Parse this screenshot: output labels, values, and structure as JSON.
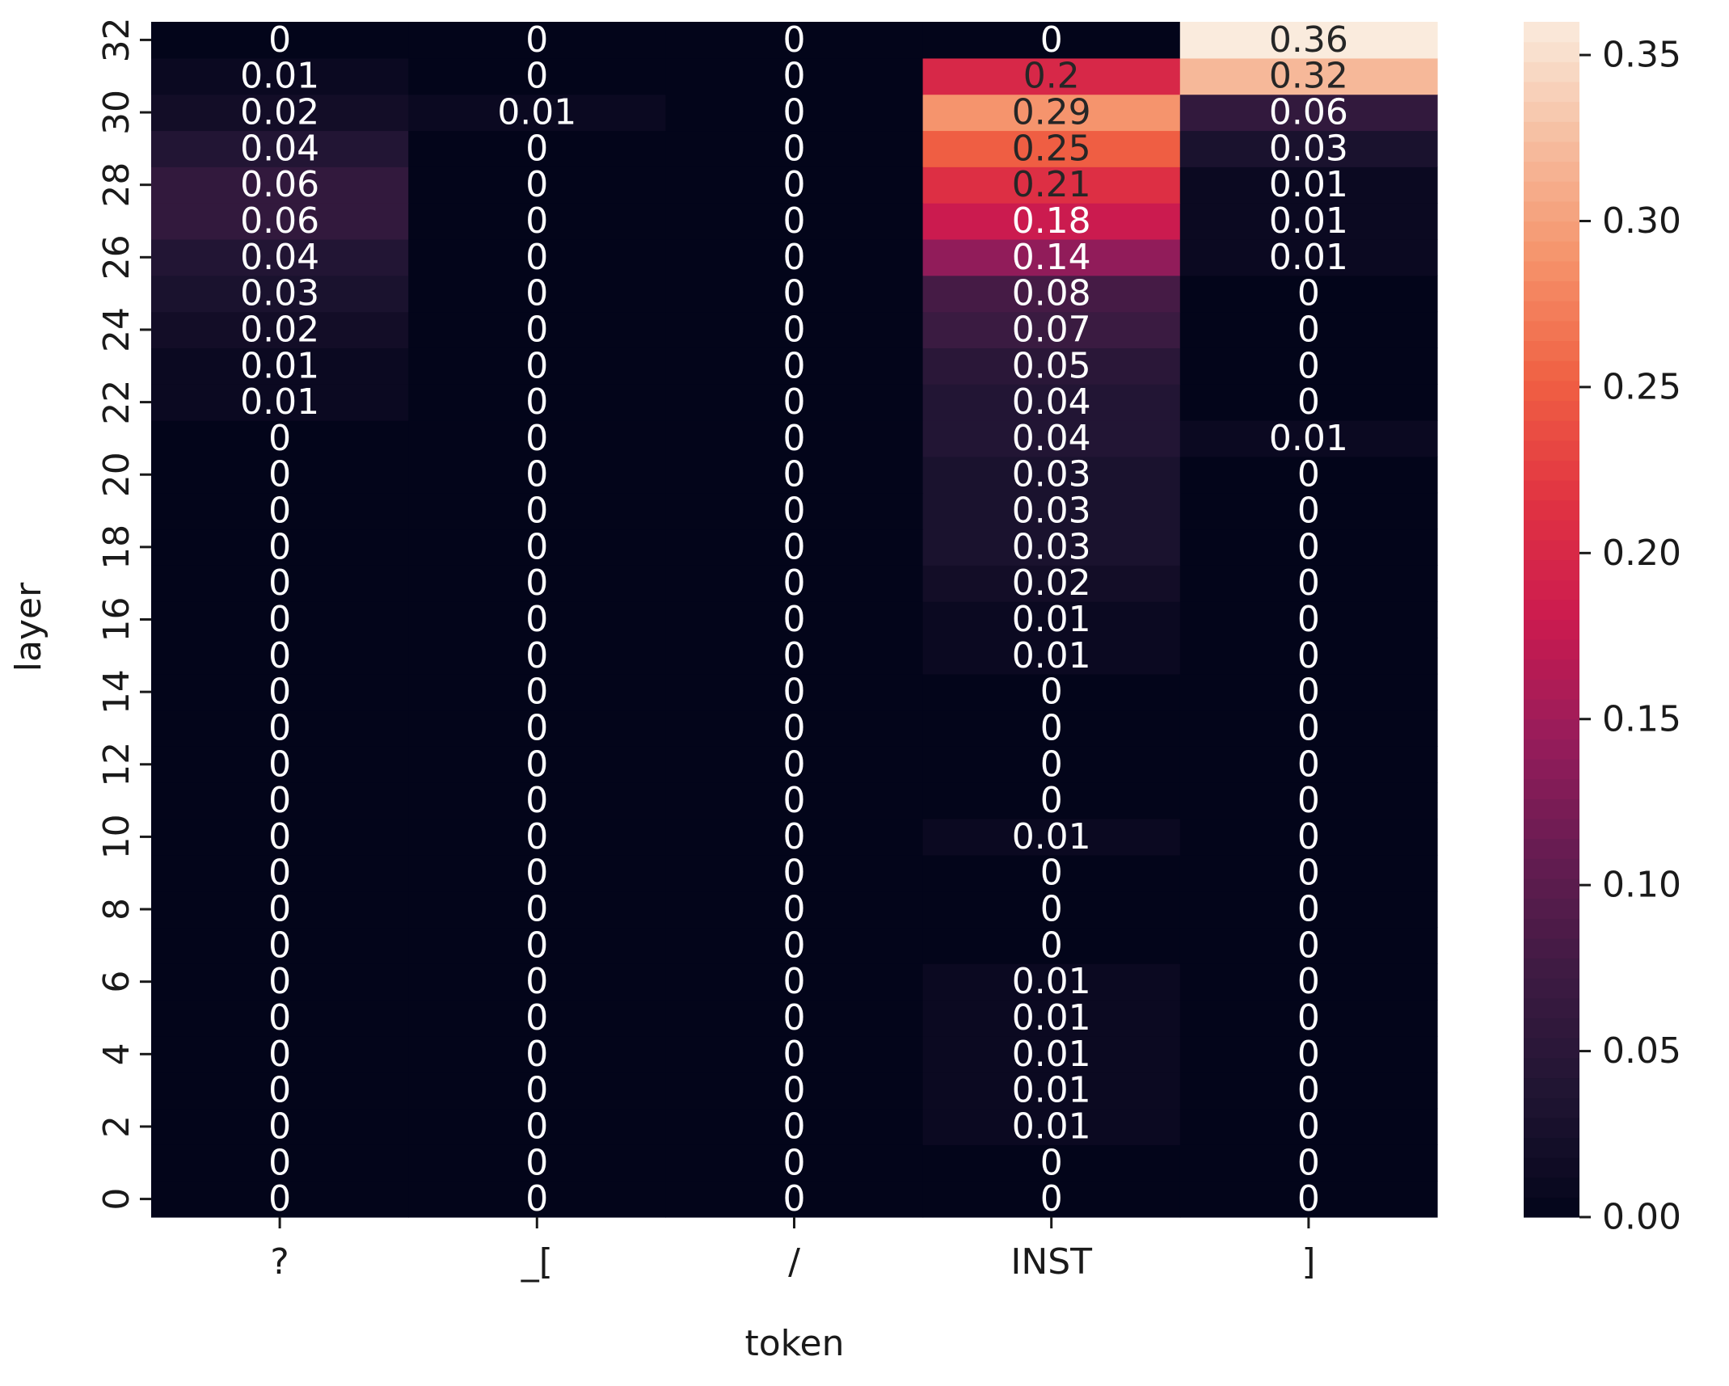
{
  "chart_data": {
    "type": "heatmap",
    "xlabel": "token",
    "ylabel": "layer",
    "x_categories": [
      "?",
      "_[",
      "/",
      "INST",
      "]"
    ],
    "y_categories": [
      0,
      1,
      2,
      3,
      4,
      5,
      6,
      7,
      8,
      9,
      10,
      11,
      12,
      13,
      14,
      15,
      16,
      17,
      18,
      19,
      20,
      21,
      22,
      23,
      24,
      25,
      26,
      27,
      28,
      29,
      30,
      31,
      32
    ],
    "y_tick_labels": [
      "0",
      "2",
      "4",
      "6",
      "8",
      "10",
      "12",
      "14",
      "16",
      "18",
      "20",
      "22",
      "24",
      "26",
      "28",
      "30",
      "32"
    ],
    "y_order": "bottom-to-top",
    "values": [
      [
        0,
        0,
        0,
        0,
        0
      ],
      [
        0,
        0,
        0,
        0,
        0
      ],
      [
        0,
        0,
        0,
        0.01,
        0
      ],
      [
        0,
        0,
        0,
        0.01,
        0
      ],
      [
        0,
        0,
        0,
        0.01,
        0
      ],
      [
        0,
        0,
        0,
        0.01,
        0
      ],
      [
        0,
        0,
        0,
        0.01,
        0
      ],
      [
        0,
        0,
        0,
        0,
        0
      ],
      [
        0,
        0,
        0,
        0,
        0
      ],
      [
        0,
        0,
        0,
        0,
        0
      ],
      [
        0,
        0,
        0,
        0.01,
        0
      ],
      [
        0,
        0,
        0,
        0,
        0
      ],
      [
        0,
        0,
        0,
        0,
        0
      ],
      [
        0,
        0,
        0,
        0,
        0
      ],
      [
        0,
        0,
        0,
        0,
        0
      ],
      [
        0,
        0,
        0,
        0.01,
        0
      ],
      [
        0,
        0,
        0,
        0.01,
        0
      ],
      [
        0,
        0,
        0,
        0.02,
        0
      ],
      [
        0,
        0,
        0,
        0.03,
        0
      ],
      [
        0,
        0,
        0,
        0.03,
        0
      ],
      [
        0,
        0,
        0,
        0.03,
        0
      ],
      [
        0,
        0,
        0,
        0.04,
        0.01
      ],
      [
        0.01,
        0,
        0,
        0.04,
        0
      ],
      [
        0.01,
        0,
        0,
        0.05,
        0
      ],
      [
        0.02,
        0,
        0,
        0.07,
        0
      ],
      [
        0.03,
        0,
        0,
        0.08,
        0
      ],
      [
        0.04,
        0,
        0,
        0.14,
        0.01
      ],
      [
        0.06,
        0,
        0,
        0.18,
        0.01
      ],
      [
        0.06,
        0,
        0,
        0.21,
        0.01
      ],
      [
        0.04,
        0,
        0,
        0.25,
        0.03
      ],
      [
        0.02,
        0.01,
        0,
        0.29,
        0.06
      ],
      [
        0.01,
        0,
        0,
        0.2,
        0.32
      ],
      [
        0,
        0,
        0,
        0,
        0.36
      ]
    ],
    "colorbar": {
      "ticks": [
        0.0,
        0.05,
        0.1,
        0.15,
        0.2,
        0.25,
        0.3,
        0.35
      ],
      "tick_labels": [
        "0.00",
        "0.05",
        "0.10",
        "0.15",
        "0.20",
        "0.25",
        "0.30",
        "0.35"
      ],
      "vmin": 0.0,
      "vmax": 0.36,
      "colormap": "rocket",
      "colors": [
        "#03051a",
        "#1f1432",
        "#3c1b42",
        "#641c51",
        "#971c5b",
        "#cb1b4f",
        "#e13342",
        "#f06043",
        "#f5926a",
        "#f6bd9f",
        "#faebdd"
      ]
    },
    "grid": false,
    "annotations": "cell values shown in every cell"
  }
}
